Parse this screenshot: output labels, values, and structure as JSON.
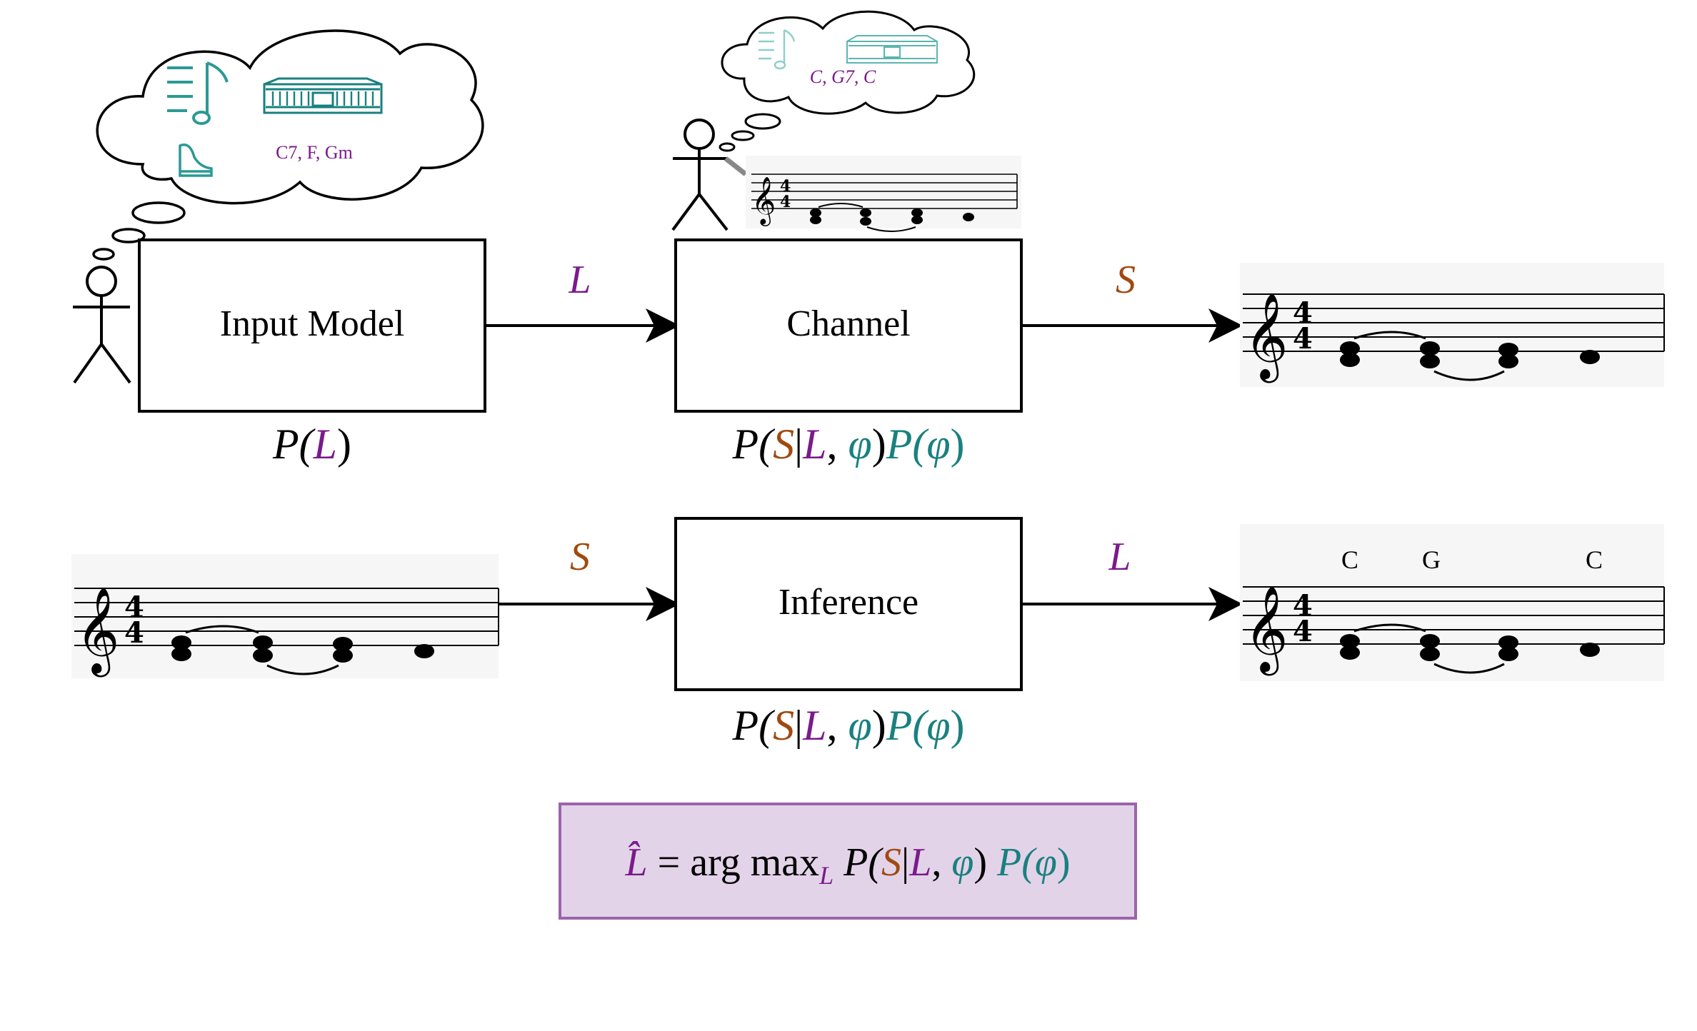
{
  "colors": {
    "latent": "#7a1a8c",
    "surface": "#a04a10",
    "param": "#1a8080",
    "formula_bg": "#e3d3e8",
    "formula_border": "#9a64aa",
    "score_bg": "#f6f6f6"
  },
  "boxes": {
    "input_model": "Input Model",
    "channel": "Channel",
    "inference": "Inference"
  },
  "arrows": {
    "top_left": "L",
    "top_right": "S",
    "bottom_left": "S",
    "bottom_right": "L"
  },
  "thought_bubbles": {
    "composer_chords": "C7, F, Gm",
    "arranger_chords": "C, G7, C",
    "icons": [
      "music-note-icon",
      "concert-hall-icon",
      "piano-icon"
    ]
  },
  "formulas": {
    "input_prob": {
      "p": "P(",
      "l": "L",
      "close": ")"
    },
    "channel_prob": {
      "p1": "P(",
      "s": "S",
      "bar": "|",
      "l": "L",
      "comma": ", ",
      "phi": "φ",
      "close1": ")",
      "p2": "P(",
      "phi2": "φ",
      "close2": ")"
    },
    "inference_prob": {
      "p1": "P(",
      "s": "S",
      "bar": "|",
      "l": "L",
      "comma": ", ",
      "phi": "φ",
      "close1": ")",
      "p2": "P(",
      "phi2": "φ",
      "close2": ")"
    },
    "argmax": {
      "lhat": "L̂",
      "eq": " = arg max",
      "sub": "L",
      "p1": " P(",
      "s": "S",
      "bar": "|",
      "l": "L",
      "comma": ", ",
      "phi": "φ",
      "close1": ") ",
      "p2": "P(",
      "phi2": "φ",
      "close2": ")"
    }
  },
  "chord_labels": [
    "C",
    "G",
    "C"
  ]
}
